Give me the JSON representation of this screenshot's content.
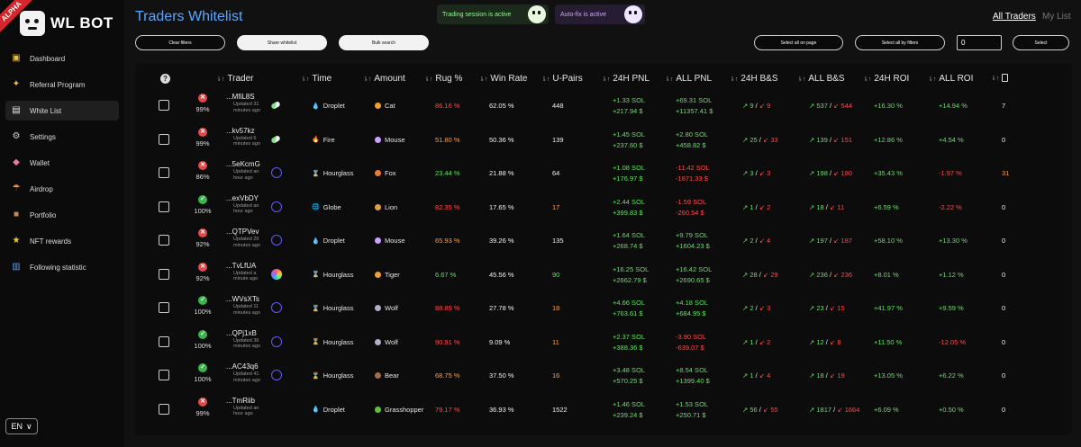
{
  "brand": {
    "badge": "ALPHA",
    "name": "WL BOT"
  },
  "sidebar": {
    "items": [
      {
        "label": "Dashboard",
        "icon": "dashboard-icon",
        "glyph": "▣",
        "color": "#e8c04a"
      },
      {
        "label": "Referral Program",
        "icon": "handshake-icon",
        "glyph": "✦",
        "color": "#f0c050"
      },
      {
        "label": "White List",
        "icon": "list-icon",
        "glyph": "▤",
        "color": "#e8e8e8",
        "active": true
      },
      {
        "label": "Settings",
        "icon": "gear-icon",
        "glyph": "⚙",
        "color": "#cccccc"
      },
      {
        "label": "Wallet",
        "icon": "wallet-icon",
        "glyph": "◆",
        "color": "#e87aa0"
      },
      {
        "label": "Airdrop",
        "icon": "parachute-icon",
        "glyph": "☂",
        "color": "#e88a4a"
      },
      {
        "label": "Portfolio",
        "icon": "briefcase-icon",
        "glyph": "■",
        "color": "#c08a5a"
      },
      {
        "label": "NFT rewards",
        "icon": "star-icon",
        "glyph": "★",
        "color": "#f5c842"
      },
      {
        "label": "Following statistic",
        "icon": "bar-chart-icon",
        "glyph": "▥",
        "color": "#5aa0f0"
      }
    ],
    "language": "EN",
    "language_chevron": "∨"
  },
  "header": {
    "title": "Traders Whitelist",
    "trading_status": "Trading session is active",
    "autofix_status": "Auto-fix is active",
    "tabs": {
      "all": "All Traders",
      "my": "My List"
    }
  },
  "toolbar": {
    "clear": "Clear filters",
    "share": "Share whitelist",
    "bulk": "Bulk search",
    "select_page": "Select all on page",
    "select_filters": "Select all by filters",
    "count_value": "0",
    "select": "Select"
  },
  "columns": {
    "trader": "Trader",
    "time": "Time",
    "amount": "Amount",
    "rug": "Rug %",
    "win": "Win Rate",
    "upairs": "U-Pairs",
    "pnl24": "24H PNL",
    "pnlall": "ALL PNL",
    "bs24": "24H B&S",
    "bsall": "ALL B&S",
    "roi24": "24H ROI",
    "roiall": "ALL ROI",
    "help": "?",
    "sort": "⇂↑"
  },
  "colors": {
    "accent": "#5aa6ff",
    "positive": "#5fe35f",
    "negative": "#ff4b4b",
    "warning": "#ffa040"
  },
  "rows": [
    {
      "status": "bad",
      "status_glyph": "✕",
      "score": "99%",
      "name": "...MfiL8S",
      "updated": "Updated 31 minutes ago",
      "badge": "pill",
      "time": "Droplet",
      "time_icon": "droplet-icon",
      "time_glyph": "💧",
      "amount": "Cat",
      "amount_icon": "cat-icon",
      "amount_color": "#f0a030",
      "rug": "86.16 %",
      "rug_c": "red",
      "win": "62.05 %",
      "upairs": "448",
      "upairs_c": "white",
      "pnl24_sol": "+1.33 SOL",
      "pnl24_usd": "+217.94 $",
      "pnl24_c": "green",
      "pnlall_sol": "+69.31 SOL",
      "pnlall_usd": "+11357.41 $",
      "pnlall_c": "green",
      "bs24_buy": "↗ 9",
      "bs24_sell": "↙ 9",
      "bsall_buy": "↗ 537",
      "bsall_sell": "↙ 544",
      "roi24": "+16.30 %",
      "roi24_c": "green",
      "roiall": "+14.94 %",
      "roiall_c": "green",
      "copies": "7",
      "copies_c": "white"
    },
    {
      "status": "bad",
      "status_glyph": "✕",
      "score": "99%",
      "name": "...kv57kz",
      "updated": "Updated 6 minutes ago",
      "badge": "pill",
      "time": "Fire",
      "time_icon": "fire-icon",
      "time_glyph": "🔥",
      "amount": "Mouse",
      "amount_icon": "mouse-icon",
      "amount_color": "#d0a0ff",
      "rug": "51.80 %",
      "rug_c": "orange",
      "win": "50.36 %",
      "upairs": "139",
      "upairs_c": "white",
      "pnl24_sol": "+1.45 SOL",
      "pnl24_usd": "+237.60 $",
      "pnl24_c": "green",
      "pnlall_sol": "+2.80 SOL",
      "pnlall_usd": "+458.82 $",
      "pnlall_c": "green",
      "bs24_buy": "↗ 25",
      "bs24_sell": "↙ 33",
      "bsall_buy": "↗ 139",
      "bsall_sell": "↙ 151",
      "roi24": "+12.86 %",
      "roi24_c": "green",
      "roiall": "+4.54 %",
      "roiall_c": "green",
      "copies": "0",
      "copies_c": "white"
    },
    {
      "status": "bad",
      "status_glyph": "✕",
      "score": "86%",
      "name": "...5eKcmG",
      "updated": "Updated an hour ago",
      "badge": "circle",
      "time": "Hourglass",
      "time_icon": "hourglass-icon",
      "time_glyph": "⌛",
      "amount": "Fox",
      "amount_icon": "fox-icon",
      "amount_color": "#f07a30",
      "rug": "23.44 %",
      "rug_c": "green",
      "win": "21.88 %",
      "upairs": "64",
      "upairs_c": "white",
      "pnl24_sol": "+1.08 SOL",
      "pnl24_usd": "+176.97 $",
      "pnl24_c": "green",
      "pnlall_sol": "-11.42 SOL",
      "pnlall_usd": "-1871.33 $",
      "pnlall_c": "red",
      "bs24_buy": "↗ 3",
      "bs24_sell": "↙ 3",
      "bsall_buy": "↗ 198",
      "bsall_sell": "↙ 180",
      "roi24": "+35.43 %",
      "roi24_c": "green",
      "roiall": "-1.97 %",
      "roiall_c": "red",
      "copies": "31",
      "copies_c": "orange"
    },
    {
      "status": "good",
      "status_glyph": "✓",
      "score": "100%",
      "name": "...exVbDY",
      "updated": "Updated an hour ago",
      "badge": "circle",
      "time": "Globe",
      "time_icon": "globe-icon",
      "time_glyph": "🌐",
      "amount": "Lion",
      "amount_icon": "lion-icon",
      "amount_color": "#e0a040",
      "rug": "82.35 %",
      "rug_c": "red",
      "win": "17.65 %",
      "upairs": "17",
      "upairs_c": "orange",
      "pnl24_sol": "+2.44 SOL",
      "pnl24_usd": "+399.83 $",
      "pnl24_c": "green",
      "pnlall_sol": "-1.59 SOL",
      "pnlall_usd": "-260.54 $",
      "pnlall_c": "red",
      "bs24_buy": "↗ 1",
      "bs24_sell": "↙ 2",
      "bsall_buy": "↗ 18",
      "bsall_sell": "↙ 11",
      "roi24": "+6.59 %",
      "roi24_c": "green",
      "roiall": "-2.22 %",
      "roiall_c": "red",
      "copies": "0",
      "copies_c": "white"
    },
    {
      "status": "bad",
      "status_glyph": "✕",
      "score": "92%",
      "name": "...QTPVev",
      "updated": "Updated 26 minutes ago",
      "badge": "circle",
      "time": "Droplet",
      "time_icon": "droplet-icon",
      "time_glyph": "💧",
      "amount": "Mouse",
      "amount_icon": "mouse-icon",
      "amount_color": "#d0a0ff",
      "rug": "65.93 %",
      "rug_c": "orange",
      "win": "39.26 %",
      "upairs": "135",
      "upairs_c": "white",
      "pnl24_sol": "+1.64 SOL",
      "pnl24_usd": "+268.74 $",
      "pnl24_c": "green",
      "pnlall_sol": "+9.79 SOL",
      "pnlall_usd": "+1604.23 $",
      "pnlall_c": "green",
      "bs24_buy": "↗ 2",
      "bs24_sell": "↙ 4",
      "bsall_buy": "↗ 197",
      "bsall_sell": "↙ 187",
      "roi24": "+58.10 %",
      "roi24_c": "green",
      "roiall": "+13.30 %",
      "roiall_c": "green",
      "copies": "0",
      "copies_c": "white"
    },
    {
      "status": "bad",
      "status_glyph": "✕",
      "score": "92%",
      "name": "...TvLfUA",
      "updated": "Updated a minute ago",
      "badge": "rainbow",
      "time": "Hourglass",
      "time_icon": "hourglass-icon",
      "time_glyph": "⌛",
      "amount": "Tiger",
      "amount_icon": "tiger-icon",
      "amount_color": "#f0a030",
      "rug": "6.67 %",
      "rug_c": "green",
      "win": "45.56 %",
      "upairs": "90",
      "upairs_c": "green",
      "pnl24_sol": "+16.25 SOL",
      "pnl24_usd": "+2662.79 $",
      "pnl24_c": "green",
      "pnlall_sol": "+16.42 SOL",
      "pnlall_usd": "+2690.65 $",
      "pnlall_c": "green",
      "bs24_buy": "↗ 28",
      "bs24_sell": "↙ 29",
      "bsall_buy": "↗ 236",
      "bsall_sell": "↙ 236",
      "roi24": "+8.01 %",
      "roi24_c": "green",
      "roiall": "+1.12 %",
      "roiall_c": "green",
      "copies": "0",
      "copies_c": "white"
    },
    {
      "status": "good",
      "status_glyph": "✓",
      "score": "100%",
      "name": "...WVsXTs",
      "updated": "Updated 11 minutes ago",
      "badge": "circle",
      "time": "Hourglass",
      "time_icon": "hourglass-icon",
      "time_glyph": "⌛",
      "amount": "Wolf",
      "amount_icon": "wolf-icon",
      "amount_color": "#b0b0c8",
      "rug": "88.89 %",
      "rug_c": "red",
      "win": "27.78 %",
      "upairs": "18",
      "upairs_c": "orange",
      "pnl24_sol": "+4.66 SOL",
      "pnl24_usd": "+763.61 $",
      "pnl24_c": "green",
      "pnlall_sol": "+4.18 SOL",
      "pnlall_usd": "+684.95 $",
      "pnlall_c": "green",
      "bs24_buy": "↗ 2",
      "bs24_sell": "↙ 3",
      "bsall_buy": "↗ 23",
      "bsall_sell": "↙ 15",
      "roi24": "+41.97 %",
      "roi24_c": "green",
      "roiall": "+9.59 %",
      "roiall_c": "green",
      "copies": "0",
      "copies_c": "white"
    },
    {
      "status": "good",
      "status_glyph": "✓",
      "score": "100%",
      "name": "...QPj1xB",
      "updated": "Updated 36 minutes ago",
      "badge": "circle",
      "time": "Hourglass",
      "time_icon": "hourglass-icon",
      "time_glyph": "⌛",
      "amount": "Wolf",
      "amount_icon": "wolf-icon",
      "amount_color": "#b0b0c8",
      "rug": "90.91 %",
      "rug_c": "red",
      "win": "9.09 %",
      "upairs": "11",
      "upairs_c": "orange",
      "pnl24_sol": "+2.37 SOL",
      "pnl24_usd": "+388.36 $",
      "pnl24_c": "green",
      "pnlall_sol": "-3.90 SOL",
      "pnlall_usd": "-639.07 $",
      "pnlall_c": "red",
      "bs24_buy": "↗ 1",
      "bs24_sell": "↙ 2",
      "bsall_buy": "↗ 12",
      "bsall_sell": "↙ 8",
      "roi24": "+11.50 %",
      "roi24_c": "green",
      "roiall": "-12.05 %",
      "roiall_c": "red",
      "copies": "0",
      "copies_c": "white"
    },
    {
      "status": "good",
      "status_glyph": "✓",
      "score": "100%",
      "name": "...AC43q6",
      "updated": "Updated 41 minutes ago",
      "badge": "circle",
      "time": "Hourglass",
      "time_icon": "hourglass-icon",
      "time_glyph": "⌛",
      "amount": "Bear",
      "amount_icon": "bear-icon",
      "amount_color": "#a0704a",
      "rug": "68.75 %",
      "rug_c": "orange",
      "win": "37.50 %",
      "upairs": "16",
      "upairs_c": "orange",
      "pnl24_sol": "+3.48 SOL",
      "pnl24_usd": "+570.25 $",
      "pnl24_c": "green",
      "pnlall_sol": "+8.54 SOL",
      "pnlall_usd": "+1399.40 $",
      "pnlall_c": "green",
      "bs24_buy": "↗ 1",
      "bs24_sell": "↙ 4",
      "bsall_buy": "↗ 18",
      "bsall_sell": "↙ 19",
      "roi24": "+13.05 %",
      "roi24_c": "green",
      "roiall": "+6.22 %",
      "roiall_c": "green",
      "copies": "0",
      "copies_c": "white"
    },
    {
      "status": "bad",
      "status_glyph": "✕",
      "score": "99%",
      "name": "...TmRiib",
      "updated": "Updated an hour ago",
      "badge": "none",
      "time": "Droplet",
      "time_icon": "droplet-icon",
      "time_glyph": "💧",
      "amount": "Grasshopper",
      "amount_icon": "grasshopper-icon",
      "amount_color": "#60c040",
      "rug": "79.17 %",
      "rug_c": "red",
      "win": "36.93 %",
      "upairs": "1522",
      "upairs_c": "white",
      "pnl24_sol": "+1.46 SOL",
      "pnl24_usd": "+239.24 $",
      "pnl24_c": "green",
      "pnlall_sol": "+1.53 SOL",
      "pnlall_usd": "+250.71 $",
      "pnlall_c": "green",
      "bs24_buy": "↗ 56",
      "bs24_sell": "↙ 55",
      "bsall_buy": "↗ 1817",
      "bsall_sell": "↙ 1664",
      "roi24": "+6.09 %",
      "roi24_c": "green",
      "roiall": "+0.50 %",
      "roiall_c": "green",
      "copies": "0",
      "copies_c": "white"
    }
  ]
}
